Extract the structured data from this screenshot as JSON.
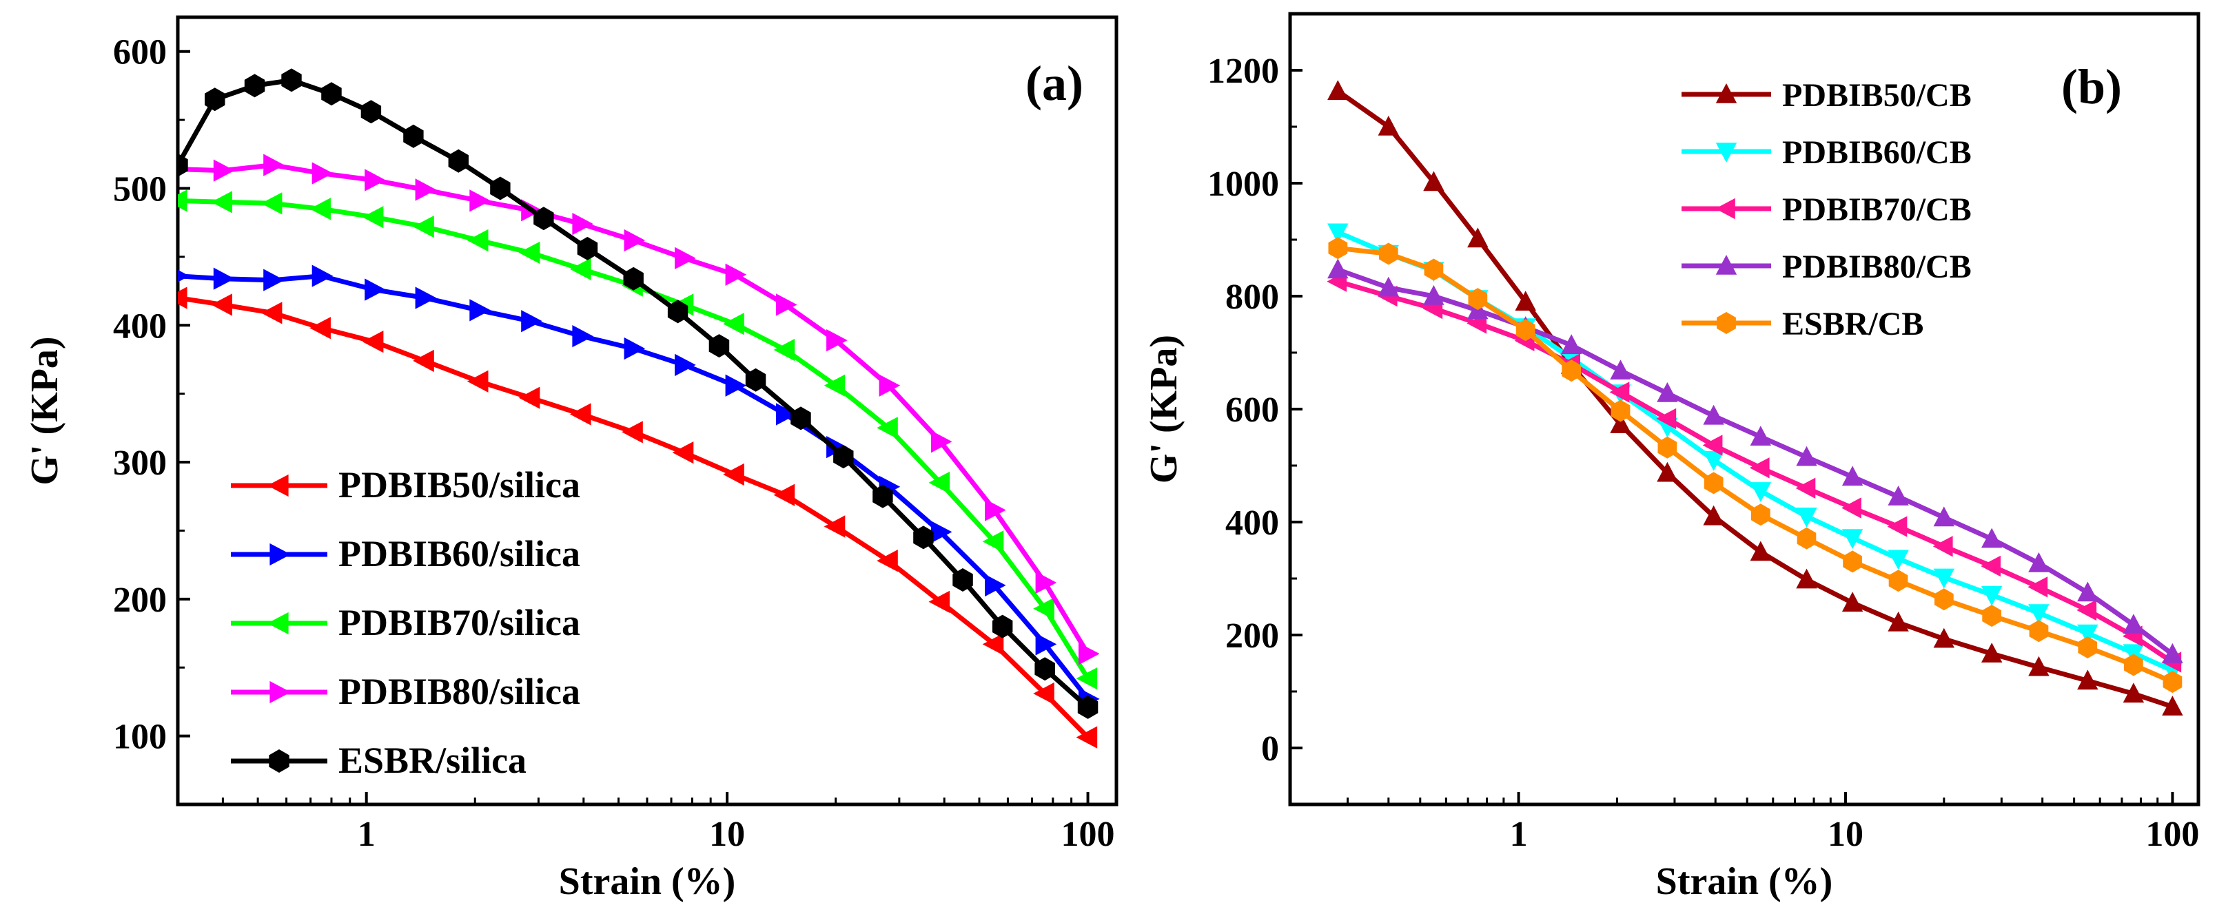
{
  "chart_data": [
    {
      "panel": "(a)",
      "type": "line",
      "xscale": "log",
      "xlabel": "Strain (%)",
      "ylabel": "G' (KPa)",
      "xlim": [
        0.3,
        120
      ],
      "ylim": [
        50,
        625
      ],
      "xticks": [
        1,
        10,
        100
      ],
      "xtick_labels": [
        "1",
        "10",
        "100"
      ],
      "yticks": [
        100,
        200,
        300,
        400,
        500,
        600
      ],
      "ytick_labels": [
        "100",
        "200",
        "300",
        "400",
        "500",
        "600"
      ],
      "legend_position": "bottom-left",
      "series": [
        {
          "name": "PDBIB50/silica",
          "color": "#ff0000",
          "marker": "triangle-left",
          "x": [
            0.3,
            0.4,
            0.55,
            0.75,
            1.05,
            1.45,
            2.05,
            2.85,
            3.95,
            5.5,
            7.6,
            10.5,
            14.5,
            20,
            28,
            39,
            55,
            76,
            100
          ],
          "y": [
            420,
            415,
            409,
            398,
            388,
            374,
            359,
            347,
            335,
            322,
            307,
            291,
            276,
            253,
            228,
            198,
            167,
            131,
            99
          ]
        },
        {
          "name": "PDBIB60/silica",
          "color": "#0000ff",
          "marker": "triangle-right",
          "x": [
            0.3,
            0.4,
            0.55,
            0.75,
            1.05,
            1.45,
            2.05,
            2.85,
            3.95,
            5.5,
            7.6,
            10.5,
            14.5,
            20,
            28,
            39,
            55,
            76,
            100
          ],
          "y": [
            436,
            434,
            433,
            436,
            426,
            420,
            411,
            403,
            392,
            383,
            371,
            356,
            335,
            311,
            282,
            249,
            210,
            167,
            127
          ]
        },
        {
          "name": "PDBIB70/silica",
          "color": "#00ff00",
          "marker": "triangle-left",
          "x": [
            0.3,
            0.4,
            0.55,
            0.75,
            1.05,
            1.45,
            2.05,
            2.85,
            3.95,
            5.5,
            7.6,
            10.5,
            14.5,
            20,
            28,
            39,
            55,
            76,
            100
          ],
          "y": [
            491,
            490,
            489,
            485,
            479,
            472,
            462,
            453,
            441,
            429,
            415,
            401,
            382,
            356,
            325,
            285,
            242,
            193,
            142
          ]
        },
        {
          "name": "PDBIB80/silica",
          "color": "#ff00ff",
          "marker": "triangle-right",
          "x": [
            0.3,
            0.4,
            0.55,
            0.75,
            1.05,
            1.45,
            2.05,
            2.85,
            3.95,
            5.5,
            7.6,
            10.5,
            14.5,
            20,
            28,
            39,
            55,
            76,
            100
          ],
          "y": [
            514,
            513,
            517,
            511,
            506,
            499,
            491,
            484,
            474,
            462,
            449,
            437,
            415,
            389,
            356,
            315,
            265,
            212,
            160
          ]
        },
        {
          "name": "ESBR/silica",
          "color": "#000000",
          "marker": "hexagon",
          "x": [
            0.3,
            0.38,
            0.49,
            0.62,
            0.8,
            1.03,
            1.35,
            1.8,
            2.35,
            3.1,
            4.1,
            5.5,
            7.3,
            9.5,
            12,
            16,
            21,
            27,
            35,
            45,
            58,
            76,
            100
          ],
          "y": [
            517,
            565,
            575,
            579,
            569,
            556,
            538,
            520,
            500,
            478,
            456,
            434,
            410,
            385,
            360,
            332,
            304,
            275,
            245,
            214,
            180,
            149,
            121
          ]
        }
      ]
    },
    {
      "panel": "(b)",
      "type": "line",
      "xscale": "log",
      "xlabel": "Strain (%)",
      "ylabel": "G' (KPa)",
      "xlim": [
        0.2,
        120
      ],
      "ylim": [
        -100,
        1300
      ],
      "xticks": [
        1,
        10,
        100
      ],
      "xtick_labels": [
        "1",
        "10",
        "100"
      ],
      "yticks": [
        0,
        200,
        400,
        600,
        800,
        1000,
        1200
      ],
      "ytick_labels": [
        "0",
        "200",
        "400",
        "600",
        "800",
        "1000",
        "1200"
      ],
      "legend_position": "top-right",
      "series": [
        {
          "name": "PDBIB50/CB",
          "color": "#990000",
          "marker": "triangle-up",
          "x": [
            0.28,
            0.4,
            0.55,
            0.75,
            1.05,
            1.45,
            2.05,
            2.85,
            3.95,
            5.5,
            7.6,
            10.5,
            14.5,
            20,
            28,
            39,
            55,
            76,
            100
          ],
          "y": [
            1163,
            1100,
            1002,
            902,
            790,
            678,
            573,
            487,
            410,
            347,
            298,
            257,
            222,
            193,
            167,
            143,
            119,
            96,
            73
          ]
        },
        {
          "name": "PDBIB60/CB",
          "color": "#00ffff",
          "marker": "triangle-down",
          "x": [
            0.28,
            0.4,
            0.55,
            0.75,
            1.05,
            1.45,
            2.05,
            2.85,
            3.95,
            5.5,
            7.6,
            10.5,
            14.5,
            20,
            28,
            39,
            55,
            76,
            100
          ],
          "y": [
            913,
            875,
            845,
            795,
            745,
            690,
            628,
            569,
            510,
            455,
            410,
            372,
            335,
            302,
            271,
            239,
            203,
            168,
            137
          ]
        },
        {
          "name": "PDBIB70/CB",
          "color": "#ff1493",
          "marker": "triangle-left",
          "x": [
            0.28,
            0.4,
            0.55,
            0.75,
            1.05,
            1.45,
            2.05,
            2.85,
            3.95,
            5.5,
            7.6,
            10.5,
            14.5,
            20,
            28,
            39,
            55,
            76,
            100
          ],
          "y": [
            826,
            800,
            778,
            752,
            721,
            680,
            630,
            583,
            536,
            496,
            460,
            425,
            392,
            357,
            322,
            285,
            244,
            198,
            152
          ]
        },
        {
          "name": "PDBIB80/CB",
          "color": "#9932cc",
          "marker": "triangle-up",
          "x": [
            0.28,
            0.4,
            0.55,
            0.75,
            1.05,
            1.45,
            2.05,
            2.85,
            3.95,
            5.5,
            7.6,
            10.5,
            14.5,
            20,
            28,
            39,
            55,
            76,
            100
          ],
          "y": [
            847,
            815,
            800,
            775,
            745,
            713,
            668,
            628,
            588,
            551,
            515,
            480,
            445,
            408,
            370,
            327,
            275,
            218,
            166
          ]
        },
        {
          "name": "ESBR/CB",
          "color": "#ff8c00",
          "marker": "hexagon",
          "x": [
            0.28,
            0.4,
            0.55,
            0.75,
            1.05,
            1.45,
            2.05,
            2.85,
            3.95,
            5.5,
            7.6,
            10.5,
            14.5,
            20,
            28,
            39,
            55,
            76,
            100
          ],
          "y": [
            885,
            875,
            847,
            795,
            740,
            668,
            597,
            532,
            469,
            413,
            371,
            330,
            296,
            263,
            234,
            207,
            178,
            147,
            117
          ]
        }
      ]
    }
  ]
}
